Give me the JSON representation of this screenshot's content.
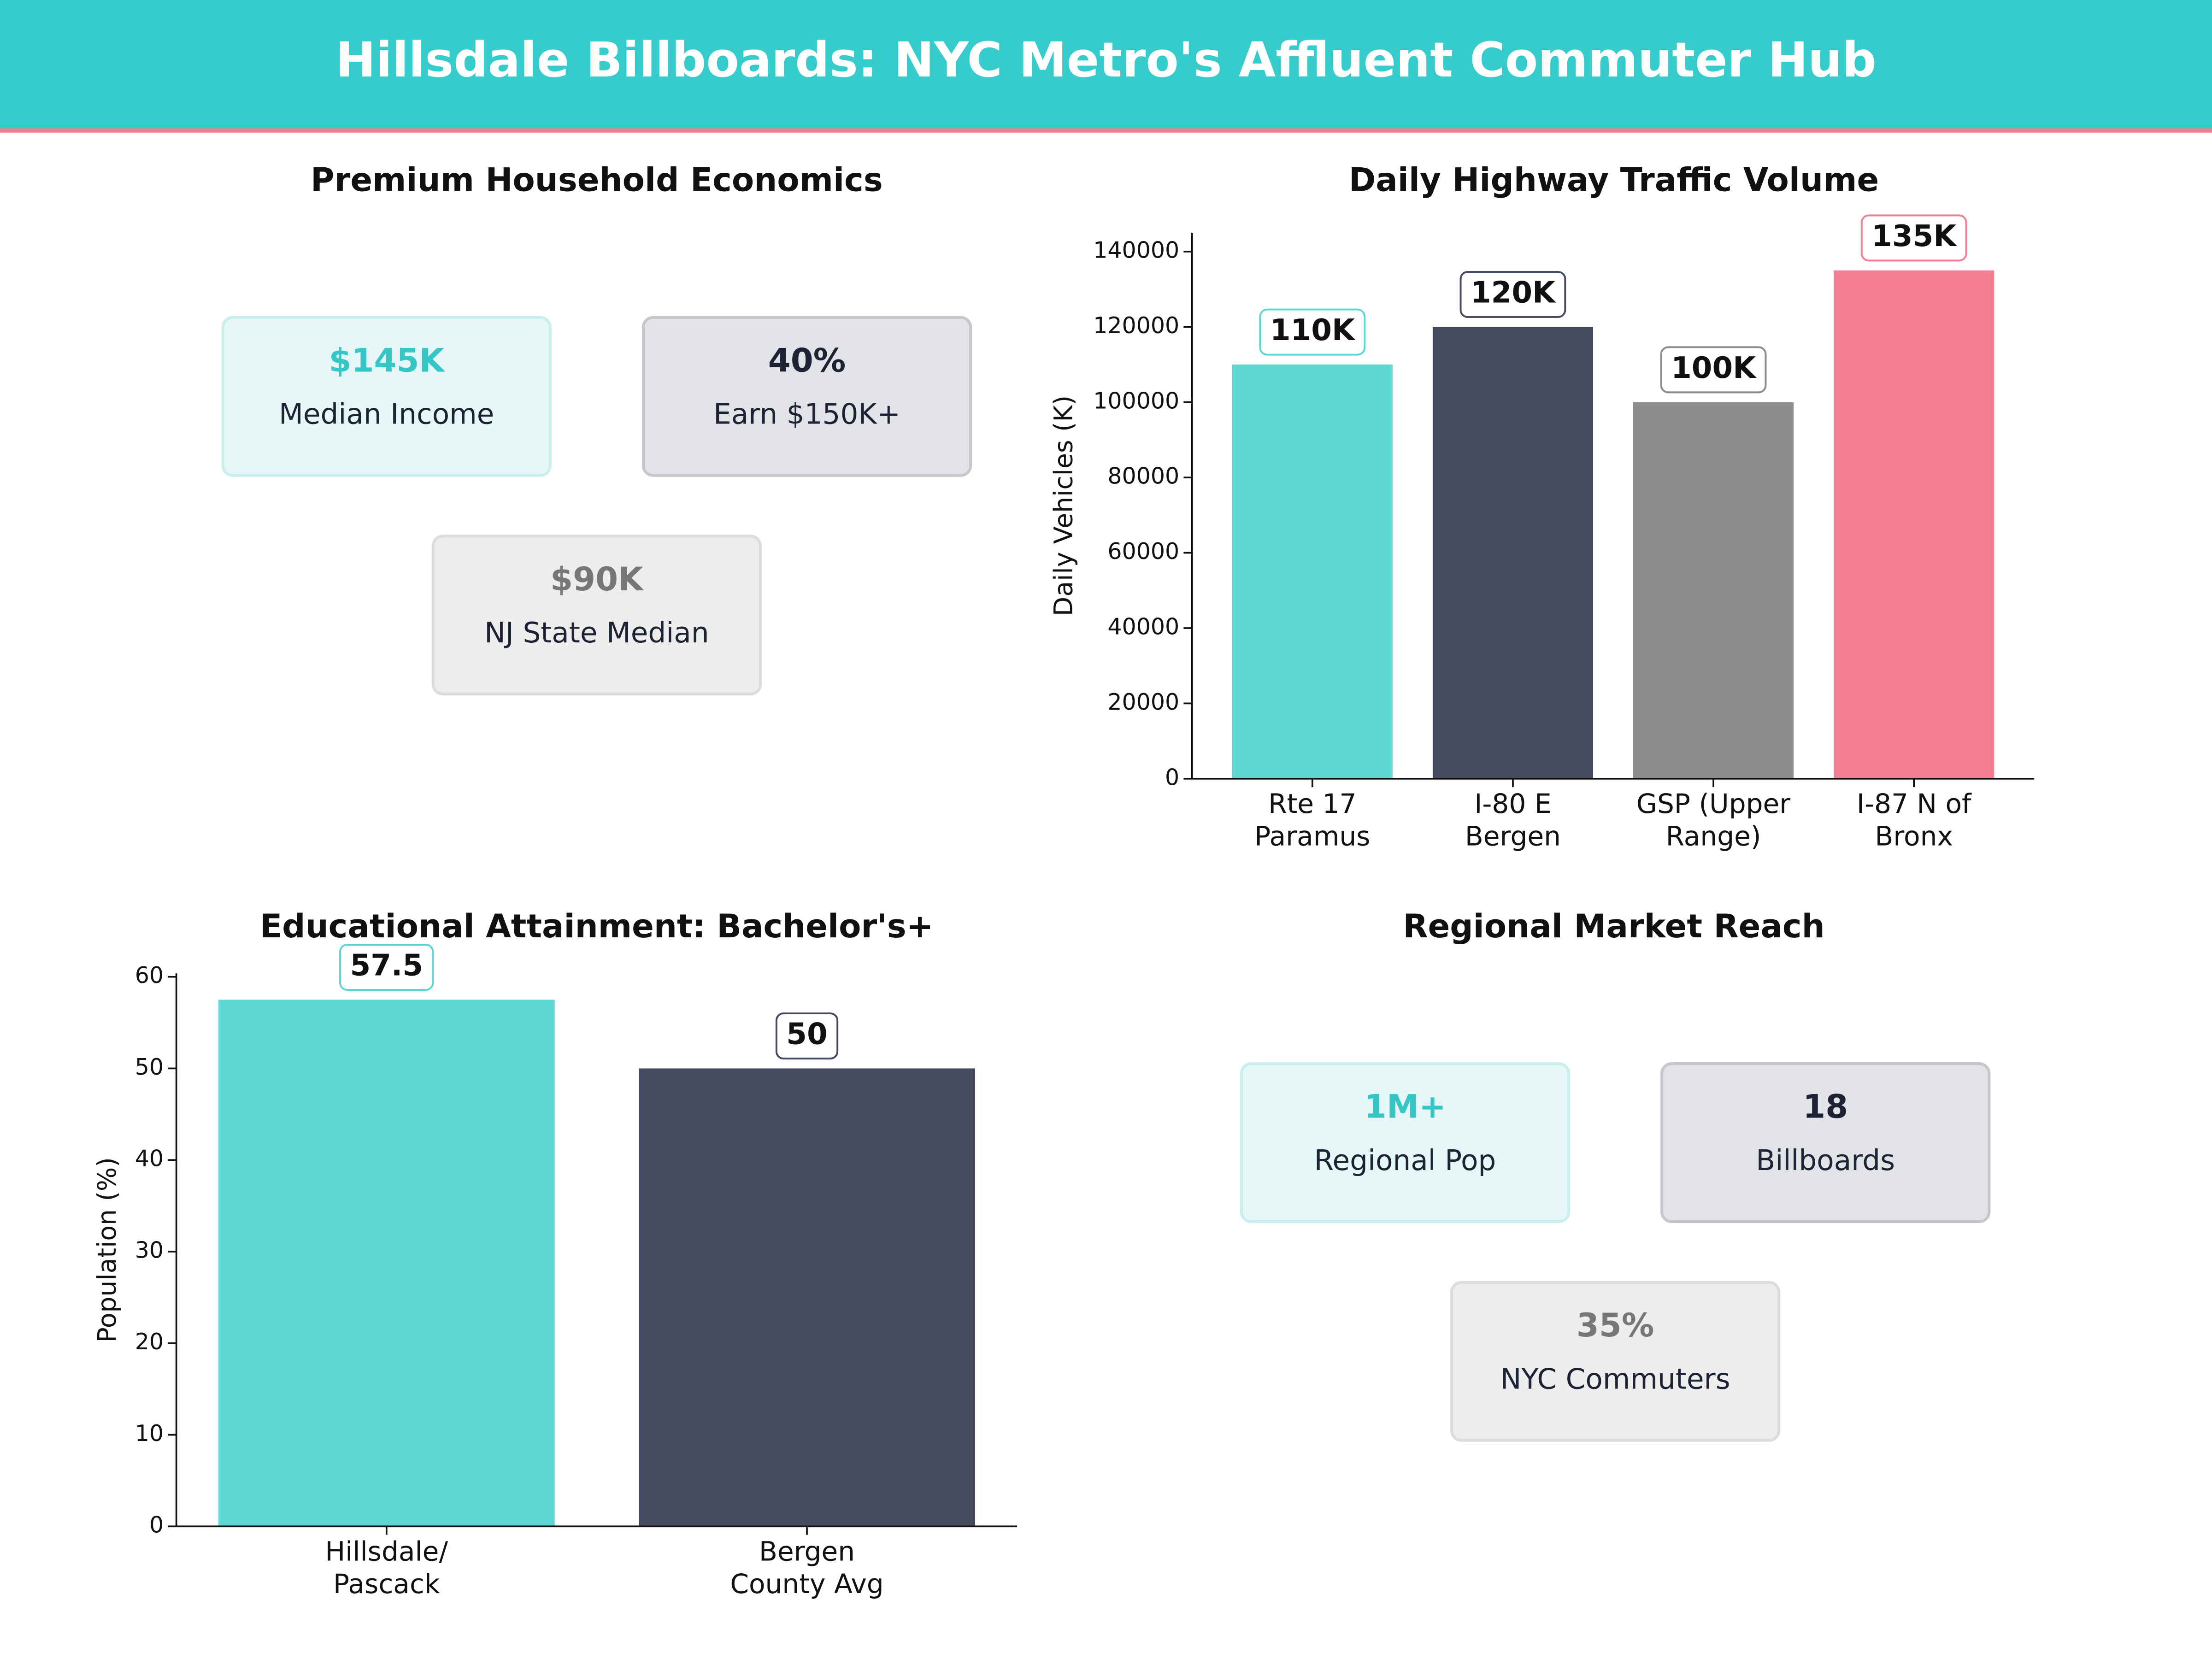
{
  "header": {
    "title": "Hillsdale Billboards: NYC Metro's Affluent Commuter Hub"
  },
  "panels": [
    {
      "title": "Premium Household Economics",
      "cards": [
        {
          "value": "$145K",
          "label": "Median Income"
        },
        {
          "value": "40%",
          "label": "Earn $150K+"
        },
        {
          "value": "$90K",
          "label": "NJ State Median"
        }
      ]
    },
    {
      "title": "Regional Market Reach",
      "cards": [
        {
          "value": "1M+",
          "label": "Regional Pop"
        },
        {
          "value": "18",
          "label": "Billboards"
        },
        {
          "value": "35%",
          "label": "NYC Commuters"
        }
      ]
    }
  ],
  "chart_data": [
    {
      "type": "bar",
      "title": "Daily Highway Traffic Volume",
      "y_label": "Daily Vehicles (K)",
      "categories": [
        "Rte 17\nParamus",
        "I-80 E\nBergen",
        "GSP (Upper\nRange)",
        "I-87 N of\nBronx"
      ],
      "values": [
        110000,
        120000,
        100000,
        135000
      ],
      "value_labels": [
        "110K",
        "120K",
        "100K",
        "135K"
      ],
      "colors": [
        "#5dd6d4",
        "#464a5f",
        "#8c8c8c",
        "#f47e92"
      ],
      "ylim": [
        0,
        145000
      ],
      "yticks": [
        0,
        20000,
        40000,
        60000,
        80000,
        100000,
        120000,
        140000
      ]
    },
    {
      "type": "bar",
      "title": "Educational Attainment: Bachelor's+",
      "y_label": "Population (%)",
      "categories": [
        "Hillsdale/\nPascack",
        "Bergen\nCounty Avg"
      ],
      "values": [
        57.5,
        50
      ],
      "colors": [
        "#5dd6d4",
        "#464a5f"
      ],
      "ylim": [
        0,
        60.375
      ],
      "yticks": [
        0,
        10,
        20,
        30,
        40,
        50,
        60
      ]
    }
  ]
}
